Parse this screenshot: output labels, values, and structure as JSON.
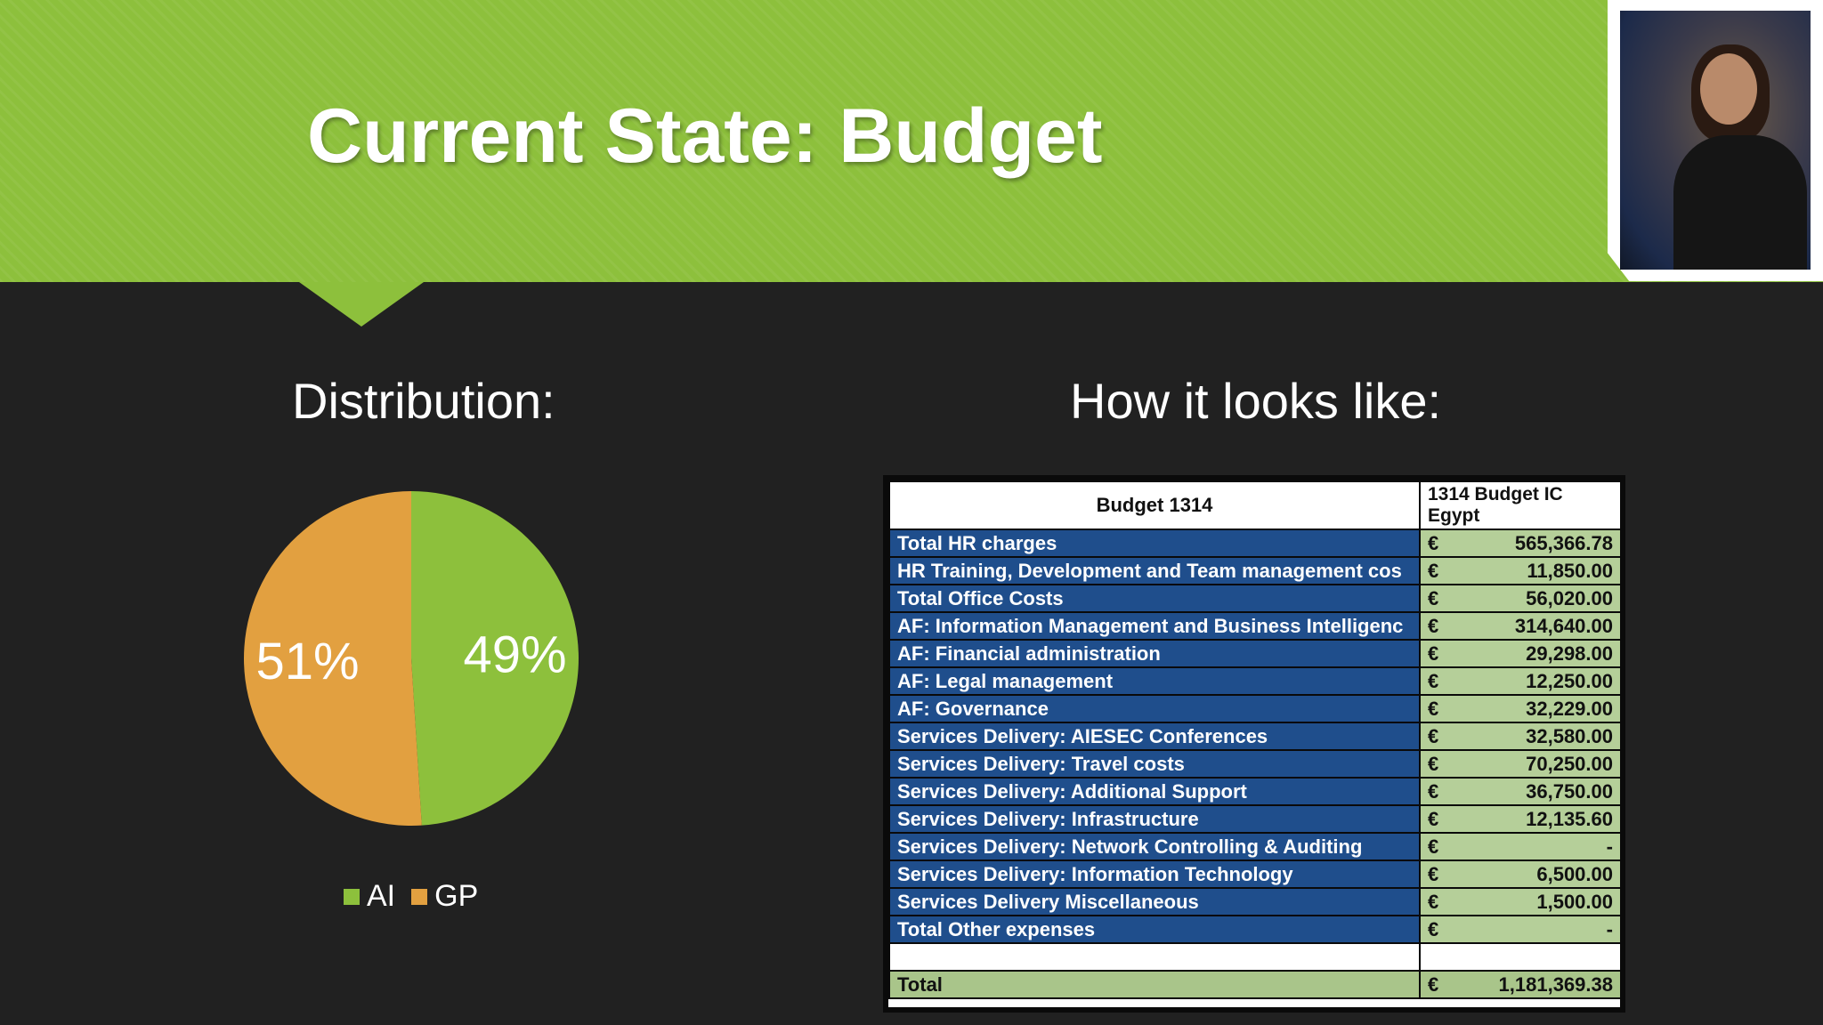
{
  "slide": {
    "title": "Current State: Budget",
    "distribution_label": "Distribution:",
    "how_label": "How it looks like:"
  },
  "colors": {
    "header_green": "#8dc03c",
    "background": "#212121",
    "ai_green": "#8dc03c",
    "gp_orange": "#e2a040",
    "table_blue": "#1f4e8c",
    "table_green": "#b5cf99"
  },
  "chart_data": {
    "type": "pie",
    "slices": [
      {
        "name": "AI",
        "value": 49,
        "label": "49%",
        "color": "#8dc03c"
      },
      {
        "name": "GP",
        "value": 51,
        "label": "51%",
        "color": "#e2a040"
      }
    ],
    "legend": "bottom"
  },
  "table": {
    "header_left": "Budget 1314",
    "header_right": "1314 Budget IC Egypt",
    "currency": "€",
    "rows": [
      {
        "label": "Total HR charges",
        "amount": "565,366.78"
      },
      {
        "label": "HR Training, Development and Team management cos",
        "amount": "11,850.00"
      },
      {
        "label": "Total Office Costs",
        "amount": "56,020.00"
      },
      {
        "label": "AF: Information Management and Business Intelligenc",
        "amount": "314,640.00"
      },
      {
        "label": "AF: Financial administration",
        "amount": "29,298.00"
      },
      {
        "label": "AF: Legal management",
        "amount": "12,250.00"
      },
      {
        "label": "AF: Governance",
        "amount": "32,229.00"
      },
      {
        "label": "Services Delivery: AIESEC Conferences",
        "amount": "32,580.00"
      },
      {
        "label": "Services Delivery: Travel costs",
        "amount": "70,250.00"
      },
      {
        "label": "Services Delivery: Additional Support",
        "amount": "36,750.00"
      },
      {
        "label": "Services Delivery: Infrastructure",
        "amount": "12,135.60"
      },
      {
        "label": "Services Delivery: Network Controlling & Auditing",
        "amount": "-"
      },
      {
        "label": "Services Delivery: Information Technology",
        "amount": "6,500.00"
      },
      {
        "label": "Services Delivery Miscellaneous",
        "amount": "1,500.00"
      },
      {
        "label": "Total Other expenses",
        "amount": "-"
      }
    ],
    "total_label": "Total",
    "total_amount": "1,181,369.38"
  }
}
